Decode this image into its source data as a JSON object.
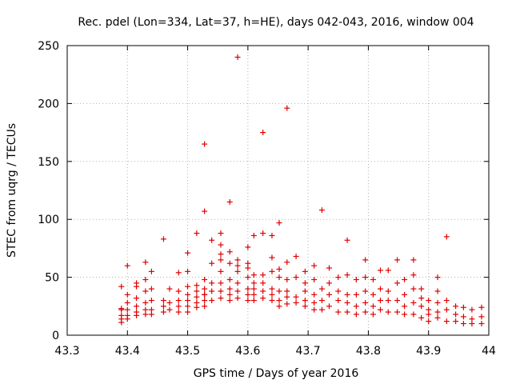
{
  "chart_data": {
    "type": "scatter",
    "title": "Rec. pdel (Lon=334, Lat=37, h=HE), days 042-043, 2016, window 004",
    "xlabel": "GPS time / Days of year 2016",
    "ylabel": "STEC from uqrg / TECUs",
    "xlim": [
      43.3,
      44.0
    ],
    "ylim": [
      0,
      250
    ],
    "xticks": [
      "43.3",
      "43.4",
      "43.5",
      "43.6",
      "43.7",
      "43.8",
      "43.9",
      "44"
    ],
    "yticks": [
      "0",
      "50",
      "100",
      "150",
      "200",
      "250"
    ],
    "grid": true,
    "marker": "+",
    "color": "#e00000",
    "series": [
      {
        "name": "STEC",
        "x": [
          43.39,
          43.39,
          43.39,
          43.39,
          43.39,
          43.39,
          43.4,
          43.4,
          43.4,
          43.4,
          43.4,
          43.4,
          43.415,
          43.415,
          43.415,
          43.415,
          43.415,
          43.415,
          43.43,
          43.43,
          43.43,
          43.43,
          43.43,
          43.43,
          43.44,
          43.44,
          43.44,
          43.44,
          43.44,
          43.46,
          43.46,
          43.46,
          43.46,
          43.47,
          43.47,
          43.47,
          43.485,
          43.485,
          43.485,
          43.485,
          43.485,
          43.5,
          43.5,
          43.5,
          43.5,
          43.5,
          43.5,
          43.5,
          43.515,
          43.515,
          43.515,
          43.515,
          43.515,
          43.515,
          43.528,
          43.528,
          43.528,
          43.528,
          43.528,
          43.528,
          43.528,
          43.528,
          43.54,
          43.54,
          43.54,
          43.54,
          43.54,
          43.555,
          43.555,
          43.555,
          43.555,
          43.555,
          43.555,
          43.555,
          43.555,
          43.57,
          43.57,
          43.57,
          43.57,
          43.57,
          43.57,
          43.57,
          43.583,
          43.583,
          43.583,
          43.583,
          43.583,
          43.583,
          43.583,
          43.6,
          43.6,
          43.6,
          43.6,
          43.6,
          43.6,
          43.6,
          43.61,
          43.61,
          43.61,
          43.61,
          43.61,
          43.61,
          43.625,
          43.625,
          43.625,
          43.625,
          43.625,
          43.625,
          43.64,
          43.64,
          43.64,
          43.64,
          43.64,
          43.64,
          43.652,
          43.652,
          43.652,
          43.652,
          43.652,
          43.652,
          43.665,
          43.665,
          43.665,
          43.665,
          43.665,
          43.665,
          43.68,
          43.68,
          43.68,
          43.68,
          43.695,
          43.695,
          43.695,
          43.695,
          43.695,
          43.71,
          43.71,
          43.71,
          43.71,
          43.71,
          43.723,
          43.723,
          43.723,
          43.723,
          43.735,
          43.735,
          43.735,
          43.735,
          43.75,
          43.75,
          43.75,
          43.75,
          43.765,
          43.765,
          43.765,
          43.765,
          43.765,
          43.78,
          43.78,
          43.78,
          43.78,
          43.795,
          43.795,
          43.795,
          43.795,
          43.795,
          43.808,
          43.808,
          43.808,
          43.808,
          43.82,
          43.82,
          43.82,
          43.82,
          43.833,
          43.833,
          43.833,
          43.833,
          43.848,
          43.848,
          43.848,
          43.848,
          43.86,
          43.86,
          43.86,
          43.86,
          43.875,
          43.875,
          43.875,
          43.875,
          43.875,
          43.888,
          43.888,
          43.888,
          43.888,
          43.9,
          43.9,
          43.9,
          43.9,
          43.915,
          43.915,
          43.915,
          43.915,
          43.915,
          43.93,
          43.93,
          43.93,
          43.93,
          43.945,
          43.945,
          43.945,
          43.958,
          43.958,
          43.958,
          43.972,
          43.972,
          43.972,
          43.988,
          43.988,
          43.988
        ],
        "y": [
          42,
          23,
          17,
          14,
          11,
          22,
          60,
          35,
          28,
          22,
          17,
          14,
          45,
          32,
          25,
          20,
          17,
          42,
          63,
          48,
          38,
          28,
          22,
          18,
          55,
          40,
          30,
          22,
          18,
          83,
          30,
          25,
          20,
          40,
          28,
          22,
          54,
          38,
          30,
          25,
          20,
          71,
          55,
          42,
          35,
          30,
          25,
          20,
          88,
          43,
          38,
          33,
          28,
          24,
          165,
          107,
          48,
          40,
          35,
          30,
          25,
          35,
          82,
          62,
          45,
          38,
          30,
          88,
          78,
          65,
          55,
          45,
          38,
          32,
          70,
          115,
          72,
          62,
          48,
          40,
          35,
          30,
          240,
          65,
          60,
          55,
          45,
          38,
          32,
          76,
          62,
          58,
          50,
          40,
          35,
          30,
          86,
          52,
          45,
          40,
          35,
          30,
          175,
          88,
          52,
          45,
          38,
          32,
          86,
          67,
          55,
          40,
          35,
          30,
          97,
          57,
          50,
          38,
          30,
          25,
          196,
          63,
          48,
          38,
          33,
          27,
          68,
          50,
          33,
          28,
          55,
          45,
          38,
          30,
          25,
          60,
          48,
          35,
          28,
          22,
          108,
          40,
          30,
          22,
          58,
          45,
          35,
          25,
          50,
          38,
          30,
          20,
          82,
          52,
          35,
          28,
          20,
          48,
          35,
          25,
          18,
          65,
          50,
          38,
          28,
          20,
          48,
          35,
          25,
          18,
          56,
          40,
          30,
          22,
          56,
          38,
          30,
          20,
          65,
          45,
          30,
          20,
          48,
          35,
          25,
          18,
          65,
          52,
          40,
          28,
          18,
          40,
          32,
          25,
          15,
          30,
          22,
          18,
          12,
          50,
          38,
          28,
          20,
          15,
          85,
          30,
          22,
          12,
          25,
          18,
          12,
          24,
          16,
          10,
          22,
          14,
          10,
          24,
          16,
          10
        ]
      }
    ]
  }
}
